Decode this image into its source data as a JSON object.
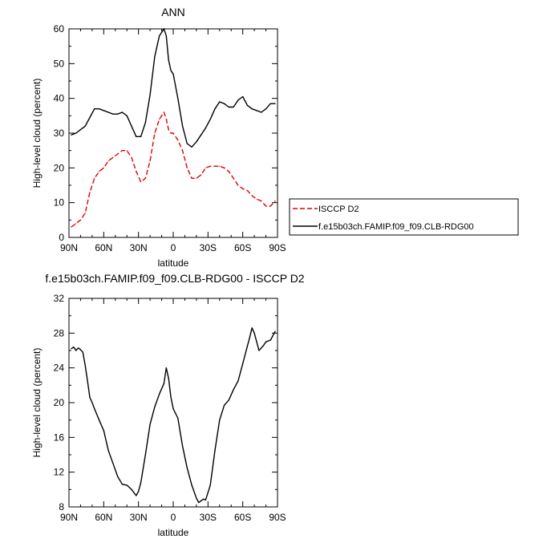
{
  "chart_data": [
    {
      "type": "line",
      "title": "ANN",
      "xlabel": "latitude",
      "ylabel": "High-level cloud (percent)",
      "xlim": [
        90,
        -90
      ],
      "ylim": [
        0,
        60
      ],
      "x_ticks": [
        90,
        60,
        30,
        0,
        -30,
        -60,
        -90
      ],
      "x_tick_labels": [
        "90N",
        "60N",
        "30N",
        "0",
        "30S",
        "60S",
        "90S"
      ],
      "y_ticks": [
        0,
        10,
        20,
        30,
        40,
        50,
        60
      ],
      "legend_position": "right",
      "series": [
        {
          "name": "ISCCP D2",
          "color": "#e00000",
          "dash": "dashed",
          "x": [
            88,
            84,
            80,
            76,
            72,
            68,
            64,
            60,
            56,
            52,
            48,
            44,
            40,
            36,
            32,
            28,
            24,
            20,
            16,
            12,
            8,
            6,
            4,
            2,
            0,
            -4,
            -8,
            -12,
            -16,
            -20,
            -24,
            -28,
            -32,
            -36,
            -40,
            -44,
            -48,
            -52,
            -56,
            -60,
            -64,
            -68,
            -72,
            -76,
            -80,
            -84,
            -88
          ],
          "values": [
            3,
            4,
            5,
            7,
            13,
            17,
            19,
            20,
            22,
            23,
            24,
            25,
            25,
            23,
            19,
            16,
            17,
            22,
            30,
            34,
            36,
            34,
            31,
            30,
            30,
            28,
            25,
            20,
            17,
            17,
            18,
            20,
            20.5,
            20.5,
            20.5,
            20,
            19,
            17,
            15,
            14,
            13.5,
            12,
            11,
            10.5,
            9,
            9,
            10.5
          ]
        },
        {
          "name": "f.e15b03ch.FAMIP.f09_f09.CLB-RDG00",
          "color": "#000000",
          "dash": "solid",
          "x": [
            88,
            84,
            80,
            76,
            72,
            68,
            64,
            60,
            56,
            52,
            48,
            44,
            40,
            36,
            32,
            28,
            24,
            20,
            16,
            12,
            8,
            6,
            4,
            2,
            0,
            -4,
            -8,
            -12,
            -16,
            -20,
            -24,
            -28,
            -32,
            -36,
            -40,
            -44,
            -48,
            -52,
            -56,
            -60,
            -64,
            -68,
            -72,
            -76,
            -80,
            -84,
            -88
          ],
          "values": [
            29.5,
            30,
            31,
            32,
            34.5,
            37,
            37,
            36.5,
            36,
            35.5,
            35.5,
            36,
            35,
            32,
            29,
            29,
            33,
            41,
            52,
            58,
            60,
            58,
            51,
            48,
            47,
            40,
            32,
            27,
            26,
            27.5,
            29.5,
            31.5,
            34,
            37,
            39,
            38.5,
            37.5,
            37.5,
            39.5,
            40.5,
            38,
            37,
            36.5,
            36,
            37,
            38.5,
            38.5
          ]
        }
      ]
    },
    {
      "type": "line",
      "title": "f.e15b03ch.FAMIP.f09_f09.CLB-RDG00 - ISCCP D2",
      "xlabel": "latitude",
      "ylabel": "High-level cloud (percent)",
      "xlim": [
        90,
        -90
      ],
      "ylim": [
        8,
        32
      ],
      "x_ticks": [
        90,
        60,
        30,
        0,
        -30,
        -60,
        -90
      ],
      "x_tick_labels": [
        "90N",
        "60N",
        "30N",
        "0",
        "30S",
        "60S",
        "90S"
      ],
      "y_ticks": [
        8,
        12,
        16,
        20,
        24,
        28,
        32
      ],
      "series": [
        {
          "name": "",
          "color": "#000000",
          "dash": "solid",
          "x": [
            88,
            86,
            84,
            82,
            80,
            78,
            76,
            74,
            72,
            70,
            68,
            64,
            60,
            56,
            52,
            48,
            44,
            40,
            36,
            32,
            30,
            28,
            24,
            20,
            16,
            12,
            8,
            6,
            4,
            2,
            0,
            -4,
            -8,
            -12,
            -16,
            -20,
            -22,
            -24,
            -26,
            -28,
            -32,
            -36,
            -40,
            -44,
            -48,
            -52,
            -56,
            -60,
            -64,
            -66,
            -68,
            -70,
            -72,
            -74,
            -76,
            -78,
            -80,
            -84,
            -88
          ],
          "values": [
            26.2,
            26.4,
            26,
            26.3,
            26.1,
            25.8,
            24.3,
            22.5,
            20.6,
            20,
            19.3,
            18,
            16.8,
            14.5,
            13,
            11.5,
            10.6,
            10.5,
            10,
            9.3,
            9.8,
            10.8,
            14,
            17.5,
            19.5,
            21,
            22.2,
            24,
            22.8,
            20.6,
            19.3,
            18.2,
            15,
            12.5,
            10.5,
            9,
            8.5,
            8.7,
            8.9,
            8.8,
            10.5,
            14.5,
            18,
            19.7,
            20.3,
            21.5,
            22.5,
            24.5,
            26.5,
            27.5,
            28.6,
            28,
            27,
            26,
            26.3,
            26.6,
            27,
            27.2,
            28.2
          ]
        }
      ]
    }
  ]
}
